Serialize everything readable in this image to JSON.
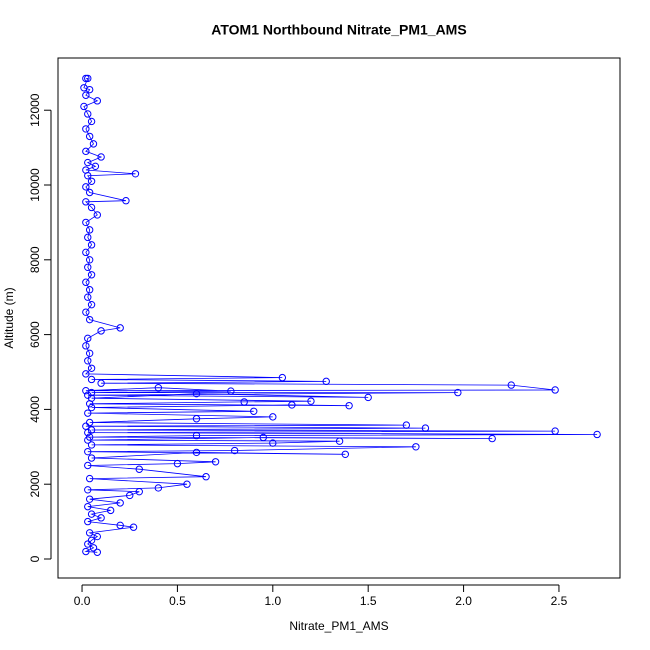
{
  "chart_data": {
    "type": "line",
    "title": "ATOM1 Northbound Nitrate_PM1_AMS",
    "x_label": "Nitrate_PM1_AMS",
    "y_label": "Altitude (m)",
    "color": "#0000ff",
    "xlim": [
      -0.126,
      2.82
    ],
    "ylim": [
      -508,
      13396
    ],
    "xticks": [
      {
        "value": 0,
        "label": "0.0"
      },
      0.5,
      {
        "value": 1,
        "label": "1.0"
      },
      1.5,
      {
        "value": 2,
        "label": "2.0"
      },
      2.5
    ],
    "yticks": [
      0,
      2000,
      4000,
      6000,
      8000,
      10000,
      12000
    ],
    "x": [
      0.02,
      0.03,
      0.01,
      0.04,
      0.02,
      0.08,
      0.01,
      0.03,
      0.05,
      0.02,
      0.04,
      0.06,
      0.02,
      0.1,
      0.03,
      0.07,
      0.02,
      0.28,
      0.03,
      0.05,
      0.02,
      0.04,
      0.23,
      0.02,
      0.05,
      0.08,
      0.02,
      0.04,
      0.03,
      0.05,
      0.02,
      0.04,
      0.03,
      0.05,
      0.02,
      0.04,
      0.03,
      0.05,
      0.02,
      0.04,
      0.2,
      0.1,
      0.03,
      0.02,
      0.04,
      0.03,
      0.05,
      0.02,
      1.05,
      0.05,
      1.28,
      0.1,
      2.25,
      2.48,
      0.02,
      0.4,
      0.78,
      0.05,
      1.97,
      0.03,
      1.5,
      0.6,
      0.05,
      1.2,
      0.85,
      0.04,
      1.4,
      1.1,
      0.05,
      0.9,
      0.03,
      1.0,
      0.6,
      0.04,
      1.7,
      0.02,
      1.8,
      0.05,
      2.48,
      0.03,
      2.7,
      0.6,
      0.04,
      2.15,
      0.95,
      0.03,
      1.35,
      1.0,
      0.05,
      1.75,
      0.8,
      0.03,
      1.38,
      0.6,
      0.05,
      0.7,
      0.5,
      0.03,
      0.3,
      0.65,
      0.04,
      0.55,
      0.4,
      0.03,
      0.3,
      0.25,
      0.04,
      0.2,
      0.03,
      0.15,
      0.05,
      0.1,
      0.03,
      0.2,
      0.27,
      0.04,
      0.08,
      0.05,
      0.03,
      0.06,
      0.02,
      0.08
    ],
    "y": [
      12850,
      12850,
      12600,
      12550,
      12400,
      12250,
      12100,
      11900,
      11700,
      11500,
      11300,
      11100,
      10900,
      10750,
      10600,
      10500,
      10400,
      10300,
      10250,
      10100,
      9950,
      9800,
      9580,
      9550,
      9400,
      9200,
      9000,
      8800,
      8600,
      8400,
      8200,
      8000,
      7800,
      7600,
      7400,
      7200,
      7000,
      6800,
      6600,
      6400,
      6180,
      6100,
      5900,
      5700,
      5500,
      5300,
      5100,
      4950,
      4850,
      4800,
      4750,
      4700,
      4650,
      4520,
      4500,
      4580,
      4490,
      4450,
      4450,
      4380,
      4320,
      4420,
      4300,
      4220,
      4200,
      4150,
      4100,
      4120,
      4050,
      3950,
      3900,
      3800,
      3750,
      3650,
      3580,
      3550,
      3500,
      3450,
      3420,
      3380,
      3330,
      3300,
      3260,
      3220,
      3250,
      3180,
      3150,
      3100,
      3050,
      3000,
      2900,
      2870,
      2800,
      2850,
      2700,
      2600,
      2550,
      2500,
      2400,
      2200,
      2150,
      2000,
      1900,
      1850,
      1800,
      1700,
      1600,
      1500,
      1400,
      1300,
      1200,
      1100,
      1000,
      900,
      850,
      700,
      600,
      500,
      400,
      300,
      200,
      180
    ]
  }
}
